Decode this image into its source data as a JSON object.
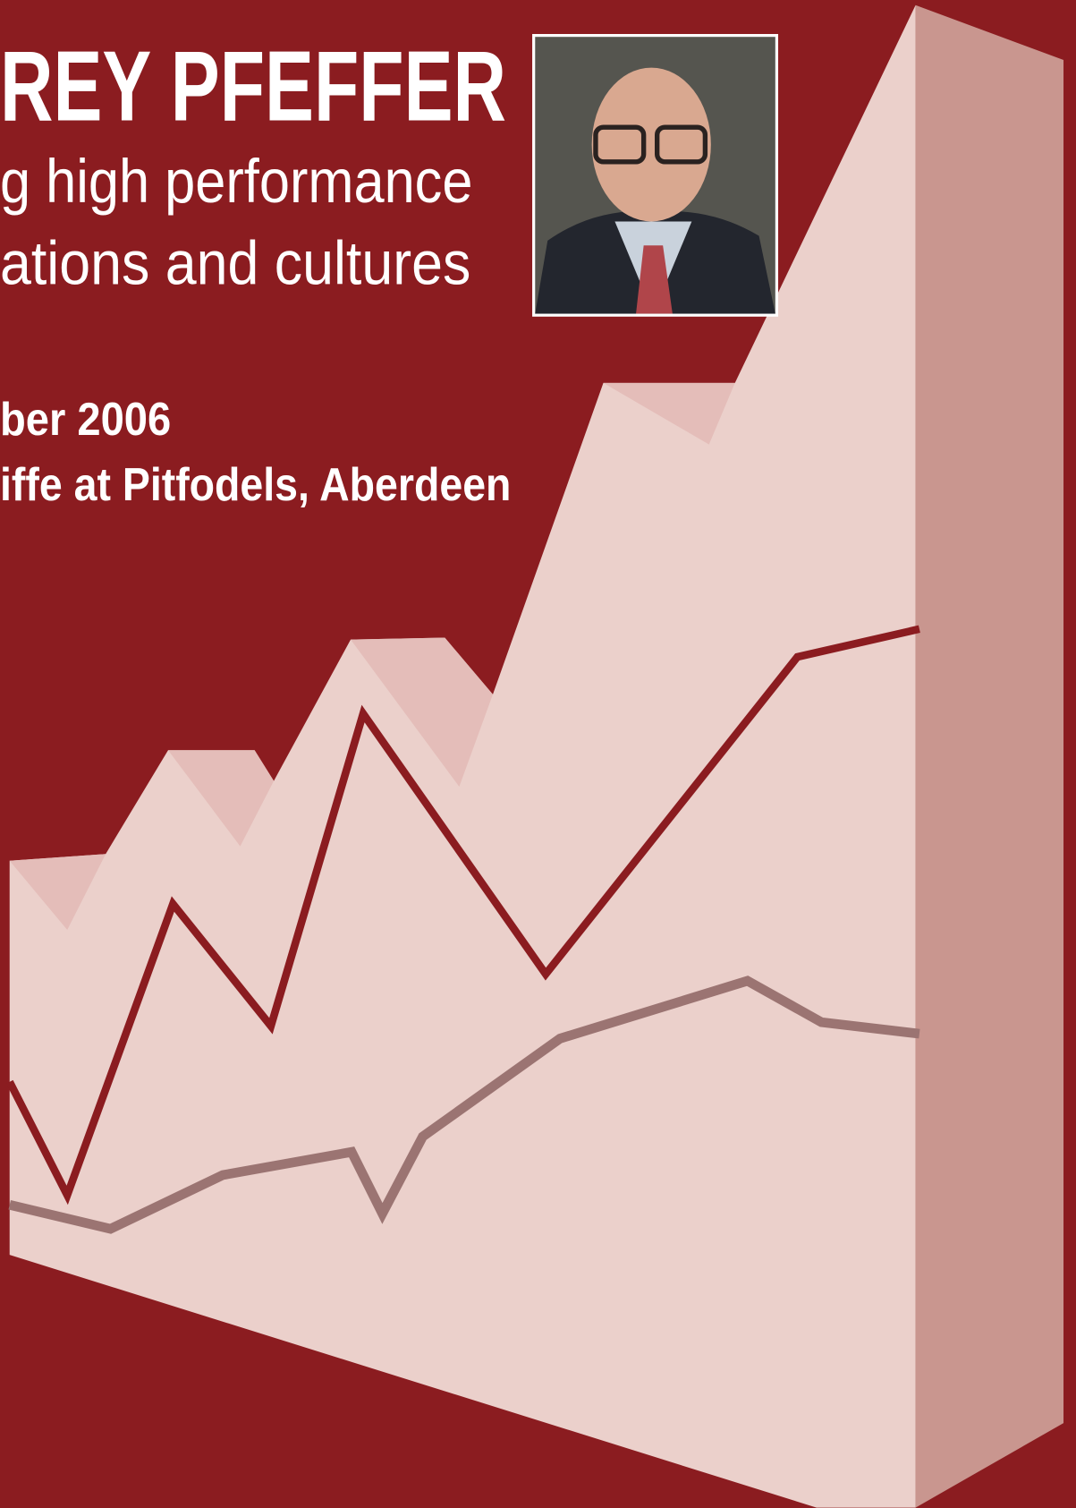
{
  "header": {
    "name": "REY PFEFFER",
    "subtitle_lines": [
      "g high performance",
      "ations and cultures"
    ]
  },
  "details": [
    "ber 2006",
    "iffe at Pitfodels, Aberdeen"
  ]
}
